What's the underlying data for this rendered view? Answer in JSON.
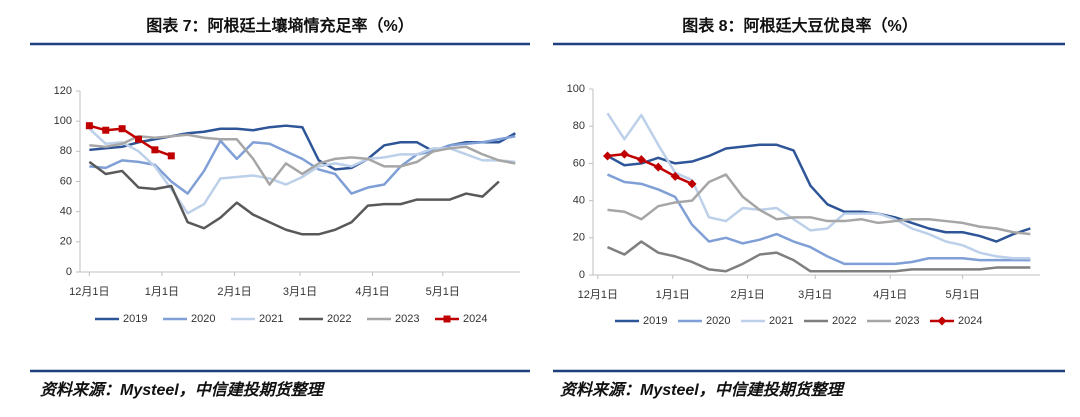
{
  "chart_data": [
    {
      "type": "line",
      "title": "图表 7：阿根廷土壤墒情充足率（%）",
      "source": "资料来源：Mysteel，中信建投期货整理",
      "x": [
        0,
        7,
        14,
        21,
        28,
        35,
        42,
        49,
        56,
        63,
        70,
        77,
        84,
        91,
        98,
        105,
        112,
        119,
        126,
        133,
        140,
        147,
        154,
        161,
        168,
        175,
        182
      ],
      "xlim": [
        -4,
        184
      ],
      "xticks": [
        {
          "value": 0,
          "label": "12月1日"
        },
        {
          "value": 31,
          "label": "1月1日"
        },
        {
          "value": 62,
          "label": "2月1日"
        },
        {
          "value": 90,
          "label": "3月1日"
        },
        {
          "value": 121,
          "label": "4月1日"
        },
        {
          "value": 151,
          "label": "5月1日"
        }
      ],
      "ylim": [
        0,
        120
      ],
      "yticks": [
        0,
        20,
        40,
        60,
        80,
        100,
        120
      ],
      "grid": false,
      "legend": "bottom",
      "series": [
        {
          "name": "2019",
          "color": "#2e5597",
          "values": [
            81,
            82,
            83,
            86,
            88,
            90,
            92,
            93,
            95,
            95,
            94,
            96,
            97,
            96,
            74,
            68,
            69,
            75,
            84,
            86,
            86,
            80,
            84,
            86,
            86,
            86,
            92
          ]
        },
        {
          "name": "2020",
          "color": "#7f9fd6",
          "values": [
            70,
            69,
            74,
            73,
            71,
            60,
            52,
            67,
            87,
            75,
            86,
            85,
            80,
            75,
            68,
            65,
            52,
            56,
            58,
            70,
            78,
            80,
            84,
            85,
            86,
            88,
            90
          ]
        },
        {
          "name": "2021",
          "color": "#bdd0ea",
          "values": [
            95,
            85,
            86,
            80,
            70,
            55,
            39,
            45,
            62,
            63,
            64,
            62,
            58,
            63,
            70,
            72,
            70,
            75,
            76,
            78,
            78,
            82,
            82,
            78,
            74,
            74,
            73
          ]
        },
        {
          "name": "2022",
          "color": "#595959",
          "values": [
            73,
            65,
            67,
            56,
            55,
            57,
            33,
            29,
            36,
            46,
            38,
            33,
            28,
            25,
            25,
            28,
            33,
            44,
            45,
            45,
            48,
            48,
            48,
            52,
            50,
            60,
            null
          ]
        },
        {
          "name": "2023",
          "color": "#a6a6a6",
          "values": [
            84,
            83,
            85,
            90,
            89,
            90,
            91,
            89,
            88,
            88,
            75,
            58,
            72,
            65,
            72,
            75,
            76,
            75,
            70,
            70,
            73,
            80,
            82,
            83,
            78,
            74,
            72
          ]
        },
        {
          "name": "2024",
          "color": "#c00000",
          "marker": "square",
          "values": [
            97,
            94,
            95,
            88,
            81,
            77,
            null,
            null,
            null,
            null,
            null,
            null,
            null,
            null,
            null,
            null,
            null,
            null,
            null,
            null,
            null,
            null,
            null,
            null,
            null,
            null,
            null
          ]
        }
      ]
    },
    {
      "type": "line",
      "title": "图表 8：阿根廷大豆优良率（%）",
      "source": "资料来源：Mysteel，中信建投期货整理",
      "x": [
        4,
        11,
        18,
        25,
        32,
        39,
        46,
        53,
        60,
        67,
        74,
        81,
        88,
        95,
        102,
        109,
        116,
        123,
        130,
        137,
        144,
        151,
        158,
        165,
        172,
        179
      ],
      "xlim": [
        -2,
        183
      ],
      "xticks": [
        {
          "value": 0,
          "label": "12月1日"
        },
        {
          "value": 31,
          "label": "1月1日"
        },
        {
          "value": 62,
          "label": "2月1日"
        },
        {
          "value": 90,
          "label": "3月1日"
        },
        {
          "value": 121,
          "label": "4月1日"
        },
        {
          "value": 151,
          "label": "5月1日"
        }
      ],
      "ylim": [
        0,
        100
      ],
      "yticks": [
        0,
        20,
        40,
        60,
        80,
        100
      ],
      "grid": false,
      "legend": "bottom",
      "series": [
        {
          "name": "2019",
          "color": "#2e5597",
          "values": [
            64,
            59,
            60,
            63,
            60,
            61,
            64,
            68,
            69,
            70,
            70,
            67,
            48,
            38,
            34,
            34,
            33,
            31,
            28,
            25,
            23,
            23,
            21,
            18,
            22,
            25
          ]
        },
        {
          "name": "2020",
          "color": "#7f9fd6",
          "values": [
            54,
            50,
            49,
            46,
            42,
            27,
            18,
            20,
            17,
            19,
            22,
            18,
            15,
            10,
            6,
            6,
            6,
            6,
            7,
            9,
            9,
            9,
            8,
            8,
            8,
            8
          ]
        },
        {
          "name": "2021",
          "color": "#bdd0ea",
          "values": [
            87,
            73,
            86,
            70,
            55,
            51,
            31,
            29,
            36,
            35,
            36,
            30,
            24,
            25,
            33,
            33,
            33,
            30,
            25,
            22,
            18,
            16,
            12,
            10,
            9,
            9
          ]
        },
        {
          "name": "2022",
          "color": "#7f7f7f",
          "values": [
            15,
            11,
            18,
            12,
            10,
            7,
            3,
            2,
            6,
            11,
            12,
            8,
            2,
            2,
            2,
            2,
            2,
            2,
            3,
            3,
            3,
            3,
            3,
            4,
            4,
            4
          ]
        },
        {
          "name": "2023",
          "color": "#a6a6a6",
          "values": [
            35,
            34,
            30,
            37,
            39,
            40,
            50,
            54,
            42,
            35,
            30,
            31,
            31,
            29,
            29,
            30,
            28,
            29,
            30,
            30,
            29,
            28,
            26,
            25,
            23,
            22
          ]
        },
        {
          "name": "2024",
          "color": "#c00000",
          "marker": "diamond",
          "values": [
            64,
            65,
            62,
            58,
            53,
            49,
            null,
            null,
            null,
            null,
            null,
            null,
            null,
            null,
            null,
            null,
            null,
            null,
            null,
            null,
            null,
            null,
            null,
            null,
            null,
            null
          ]
        }
      ]
    }
  ]
}
